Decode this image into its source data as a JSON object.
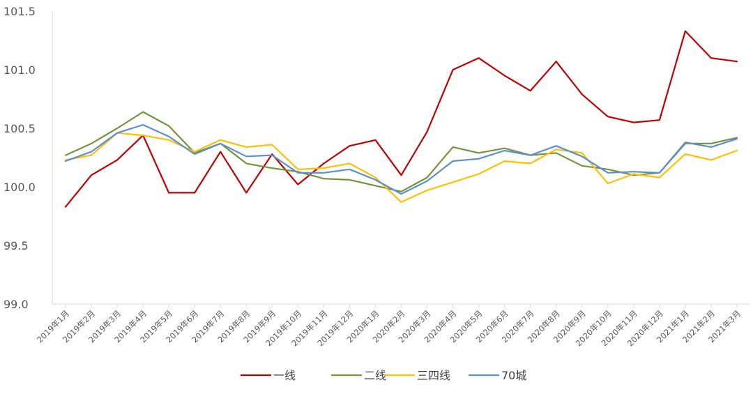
{
  "chart_data": {
    "type": "line",
    "title": "",
    "xlabel": "",
    "ylabel": "",
    "ylim": [
      99.0,
      101.5
    ],
    "yticks": [
      "99.0",
      "99.5",
      "100.0",
      "100.5",
      "101.0",
      "101.5"
    ],
    "grid": false,
    "legend_position": "bottom",
    "categories": [
      "2019年1月",
      "2019年2月",
      "2019年3月",
      "2019年4月",
      "2019年5月",
      "2019年6月",
      "2019年7月",
      "2019年8月",
      "2019年9月",
      "2019年10月",
      "2019年11月",
      "2019年12月",
      "2020年1月",
      "2020年2月",
      "2020年3月",
      "2020年4月",
      "2020年5月",
      "2020年6月",
      "2020年7月",
      "2020年8月",
      "2020年9月",
      "2020年10月",
      "2020年11月",
      "2020年12月",
      "2021年1月",
      "2021年2月",
      "2021年3月"
    ],
    "series": [
      {
        "name": "一线",
        "color": "#c00000",
        "values": [
          99.83,
          100.1,
          100.23,
          100.44,
          99.95,
          99.95,
          100.3,
          99.95,
          100.28,
          100.02,
          100.2,
          100.35,
          100.4,
          100.1,
          100.47,
          101.0,
          101.1,
          100.95,
          100.82,
          101.07,
          100.79,
          100.6,
          100.55,
          100.57,
          101.33,
          101.1,
          101.07
        ]
      },
      {
        "name": "二线",
        "color": "#76923c",
        "values": [
          100.27,
          100.37,
          100.5,
          100.64,
          100.52,
          100.29,
          100.37,
          100.2,
          100.16,
          100.13,
          100.07,
          100.06,
          100.01,
          99.96,
          100.08,
          100.34,
          100.29,
          100.33,
          100.27,
          100.29,
          100.18,
          100.15,
          100.1,
          100.12,
          100.37,
          100.37,
          100.42
        ]
      },
      {
        "name": "三四线",
        "color": "#ffc000",
        "values": [
          100.23,
          100.27,
          100.46,
          100.44,
          100.4,
          100.3,
          100.4,
          100.34,
          100.36,
          100.15,
          100.16,
          100.2,
          100.08,
          99.87,
          99.97,
          100.04,
          100.11,
          100.22,
          100.2,
          100.32,
          100.29,
          100.03,
          100.11,
          100.08,
          100.28,
          100.23,
          100.31
        ]
      },
      {
        "name": "70城",
        "color": "#5b8fd4",
        "values": [
          100.22,
          100.3,
          100.46,
          100.53,
          100.43,
          100.28,
          100.37,
          100.26,
          100.27,
          100.12,
          100.12,
          100.15,
          100.06,
          99.94,
          100.05,
          100.22,
          100.24,
          100.31,
          100.27,
          100.35,
          100.26,
          100.12,
          100.13,
          100.12,
          100.38,
          100.34,
          100.41
        ]
      }
    ]
  }
}
